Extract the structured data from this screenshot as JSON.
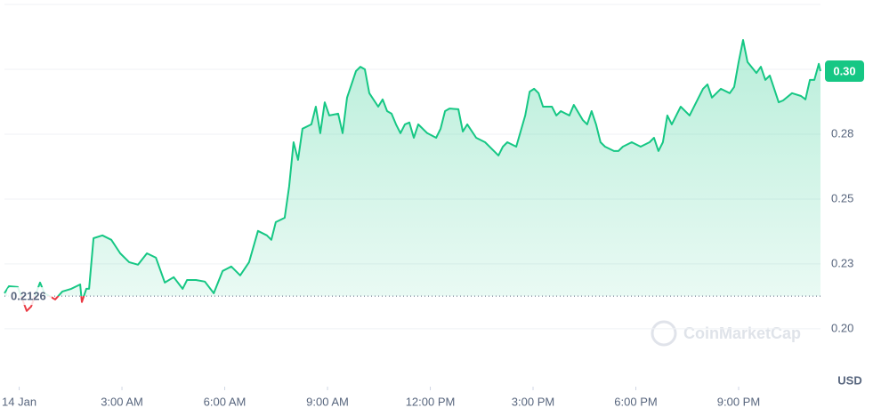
{
  "chart_data": {
    "type": "line",
    "x": [
      -0.43,
      -0.3,
      -0.04,
      0.22,
      0.35,
      0.61,
      0.74,
      1.05,
      1.26,
      1.52,
      1.78,
      1.83,
      1.96,
      2.04,
      2.17,
      2.43,
      2.69,
      2.95,
      3.21,
      3.47,
      3.73,
      3.99,
      4.25,
      4.51,
      4.77,
      4.9,
      5.16,
      5.42,
      5.68,
      5.94,
      6.19,
      6.45,
      6.71,
      6.97,
      7.23,
      7.36,
      7.49,
      7.75,
      7.88,
      8.01,
      8.14,
      8.27,
      8.53,
      8.66,
      8.79,
      8.92,
      9.05,
      9.31,
      9.44,
      9.57,
      9.7,
      9.83,
      9.96,
      10.09,
      10.22,
      10.48,
      10.61,
      10.74,
      10.87,
      11.0,
      11.13,
      11.26,
      11.39,
      11.52,
      11.65,
      11.91,
      12.17,
      12.3,
      12.43,
      12.56,
      12.82,
      12.95,
      13.08,
      13.34,
      13.6,
      13.86,
      13.99,
      14.12,
      14.25,
      14.51,
      14.77,
      14.9,
      15.03,
      15.16,
      15.29,
      15.55,
      15.68,
      15.81,
      16.06,
      16.19,
      16.45,
      16.58,
      16.71,
      16.84,
      16.97,
      17.1,
      17.36,
      17.49,
      17.62,
      17.88,
      18.14,
      18.4,
      18.53,
      18.66,
      18.79,
      18.92,
      19.05,
      19.18,
      19.31,
      19.57,
      19.83,
      19.96,
      20.09,
      20.22,
      20.48,
      20.74,
      20.87,
      21.0,
      21.13,
      21.26,
      21.52,
      21.65,
      21.78,
      21.91,
      22.04,
      22.17,
      22.3,
      22.56,
      22.82,
      22.95,
      23.08,
      23.21,
      23.34,
      23.39
    ],
    "values": [
      0.2137,
      0.2164,
      0.2161,
      0.2069,
      0.2086,
      0.2178,
      0.2137,
      0.2113,
      0.2144,
      0.2154,
      0.2171,
      0.2103,
      0.2154,
      0.2154,
      0.2349,
      0.236,
      0.2343,
      0.2291,
      0.2257,
      0.2247,
      0.2291,
      0.2274,
      0.2178,
      0.2199,
      0.2154,
      0.2188,
      0.2188,
      0.2182,
      0.2137,
      0.2223,
      0.224,
      0.2206,
      0.2257,
      0.2377,
      0.236,
      0.2343,
      0.2411,
      0.2428,
      0.2548,
      0.2719,
      0.2651,
      0.2771,
      0.2788,
      0.2856,
      0.2754,
      0.2873,
      0.2822,
      0.2829,
      0.2754,
      0.2891,
      0.2942,
      0.2993,
      0.301,
      0.3,
      0.2908,
      0.2856,
      0.2884,
      0.2839,
      0.2829,
      0.2788,
      0.2754,
      0.2788,
      0.2795,
      0.2736,
      0.2788,
      0.2754,
      0.2736,
      0.2771,
      0.2839,
      0.2849,
      0.2846,
      0.276,
      0.2788,
      0.2736,
      0.2719,
      0.2685,
      0.2668,
      0.2702,
      0.2719,
      0.2702,
      0.2822,
      0.2914,
      0.2925,
      0.2908,
      0.2856,
      0.2856,
      0.2822,
      0.2839,
      0.2822,
      0.2863,
      0.2805,
      0.2788,
      0.2839,
      0.2788,
      0.2719,
      0.2702,
      0.2685,
      0.2685,
      0.2702,
      0.2719,
      0.2702,
      0.2719,
      0.2736,
      0.2685,
      0.2719,
      0.2822,
      0.2788,
      0.2822,
      0.2856,
      0.2822,
      0.2891,
      0.2925,
      0.2942,
      0.2891,
      0.2925,
      0.2908,
      0.2932,
      0.3028,
      0.3113,
      0.3028,
      0.2986,
      0.301,
      0.2959,
      0.2976,
      0.2925,
      0.2873,
      0.288,
      0.2908,
      0.2897,
      0.2884,
      0.2959,
      0.2959,
      0.3021,
      0.2993
    ],
    "baseline": 0.2126,
    "last_price_label": "0.30",
    "up_color": "#16c784",
    "down_color": "#ea3943",
    "xlim": [
      -0.43,
      23.39
    ],
    "xticks": [
      {
        "value": 0,
        "label": "14 Jan"
      },
      {
        "value": 3,
        "label": "3:00 AM"
      },
      {
        "value": 6,
        "label": "6:00 AM"
      },
      {
        "value": 9,
        "label": "9:00 AM"
      },
      {
        "value": 12,
        "label": "12:00 PM"
      },
      {
        "value": 15,
        "label": "3:00 PM"
      },
      {
        "value": 18,
        "label": "6:00 PM"
      },
      {
        "value": 21,
        "label": "9:00 PM"
      }
    ],
    "ylim": [
      0.1777,
      0.325
    ],
    "yticks": [
      {
        "value": 0.2,
        "label": "0.20"
      },
      {
        "value": 0.225,
        "label": "0.23"
      },
      {
        "value": 0.25,
        "label": "0.25"
      },
      {
        "value": 0.275,
        "label": "0.28"
      },
      {
        "value": 0.3,
        "label": "0.30"
      }
    ],
    "y_unit": "USD",
    "watermark": "CoinMarketCap",
    "grid": true
  }
}
